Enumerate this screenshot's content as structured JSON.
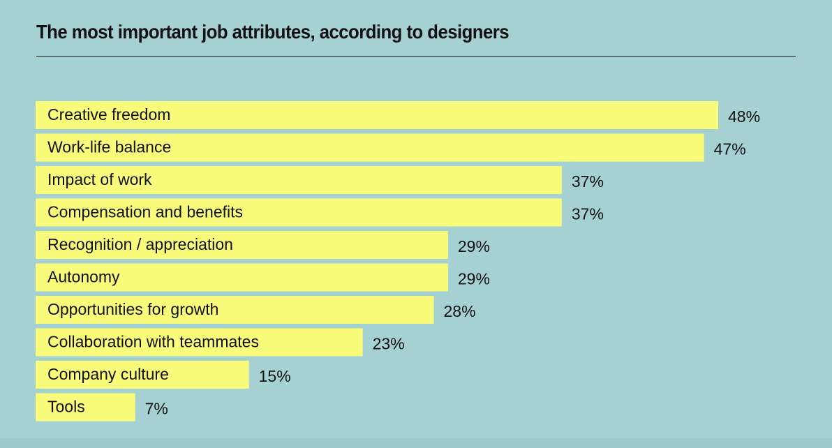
{
  "title": "The most important job attributes, according to designers",
  "colors": {
    "background": "#a6d1d2",
    "bar": "#f9fb7a",
    "text": "#111111"
  },
  "chart_data": {
    "type": "bar",
    "orientation": "horizontal",
    "title": "The most important job attributes, according to designers",
    "xlabel": "",
    "ylabel": "",
    "unit": "%",
    "xlim": [
      0,
      48
    ],
    "grid": false,
    "categories": [
      "Creative freedom",
      "Work-life balance",
      "Impact of work",
      "Compensation and benefits",
      "Recognition / appreciation",
      "Autonomy",
      "Opportunities for growth",
      "Collaboration with teammates",
      "Company culture",
      "Tools"
    ],
    "values": [
      48,
      47,
      37,
      37,
      29,
      29,
      28,
      23,
      15,
      7
    ],
    "value_labels": [
      "48%",
      "47%",
      "37%",
      "37%",
      "29%",
      "29%",
      "28%",
      "23%",
      "15%",
      "7%"
    ]
  }
}
